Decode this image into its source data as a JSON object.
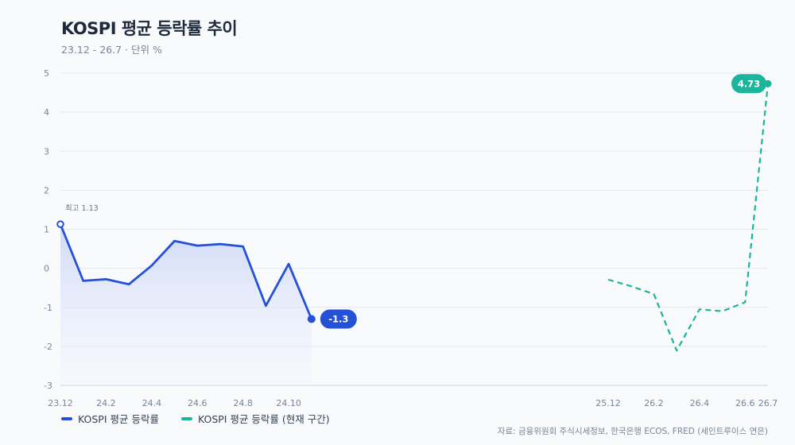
{
  "title": "KOSPI 평균 등락률 추이",
  "subtitle": "23.12 - 26.7 · 단위 %",
  "source": "자료: 금융위원회 주식시세정보, 한국은행 ECOS, FRED (세인트루이스 연은)",
  "colors": {
    "actual": "#2451d6",
    "forecast": "#1cb59b",
    "grid": "#e3e8ef",
    "area_top": "#c9d4f6"
  },
  "chart_data": {
    "type": "line",
    "x_ticks": [
      "23.12",
      "24.2",
      "24.4",
      "24.6",
      "24.8",
      "24.10",
      "25.12",
      "26.2",
      "26.4",
      "26.6",
      "26.7"
    ],
    "y_ticks": [
      "5",
      "4",
      "3",
      "2",
      "1",
      "0",
      "-1",
      "-2",
      "-3"
    ],
    "ylim": [
      -3,
      5
    ],
    "grid": true,
    "legend_position": "bottom-left",
    "series": [
      {
        "name": "KOSPI 평균 등락률",
        "style": "solid",
        "fill": true,
        "x": [
          "23.12",
          "24.1",
          "24.2",
          "24.3",
          "24.4",
          "24.5",
          "24.6",
          "24.7",
          "24.8",
          "24.9",
          "24.10",
          "24.11"
        ],
        "values": [
          1.13,
          -0.32,
          -0.28,
          -0.41,
          0.07,
          0.7,
          0.58,
          0.62,
          0.56,
          -0.96,
          0.11,
          -1.3
        ]
      },
      {
        "name": "KOSPI 평균 등락률 (현재 구간)",
        "style": "dashed",
        "fill": false,
        "x": [
          "25.12",
          "26.1",
          "26.2",
          "26.3",
          "26.4",
          "26.5",
          "26.6",
          "26.7"
        ],
        "values": [
          -0.29,
          -0.46,
          -0.66,
          -2.11,
          -1.05,
          -1.1,
          -0.87,
          4.73
        ]
      }
    ],
    "annotations": {
      "peak_label": "최고 1.13",
      "last_actual_label": "-1.3",
      "last_forecast_label": "4.73"
    }
  }
}
